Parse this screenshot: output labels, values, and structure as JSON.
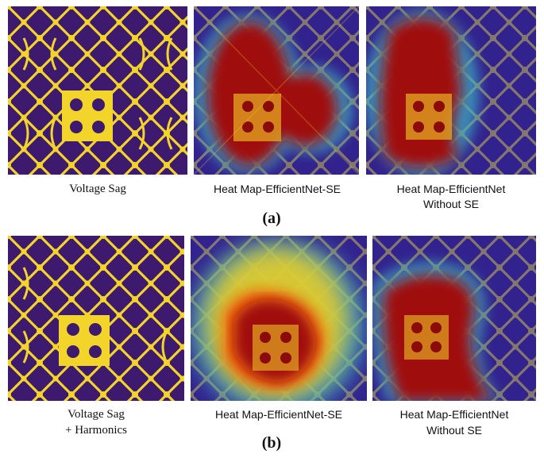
{
  "row_a": {
    "captions": {
      "panel1": "Voltage Sag",
      "panel2": "Heat Map-EfficientNet-SE",
      "panel3_line1": "Heat Map-EfficientNet",
      "panel3_line2": "Without SE"
    },
    "label": "(a)"
  },
  "row_b": {
    "captions": {
      "panel1_line1": "Voltage Sag",
      "panel1_line2": "+ Harmonics",
      "panel2": "Heat Map-EfficientNet-SE",
      "panel3_line1": "Heat Map-EfficientNet",
      "panel3_line2": "Without SE"
    },
    "label": "(b)"
  },
  "colors": {
    "background": "#3d1a6e",
    "pattern": "#f2d42a",
    "heat_low": "#2a2aa8",
    "heat_mid": "#3fb8c8",
    "heat_high": "#8b0a0a"
  }
}
